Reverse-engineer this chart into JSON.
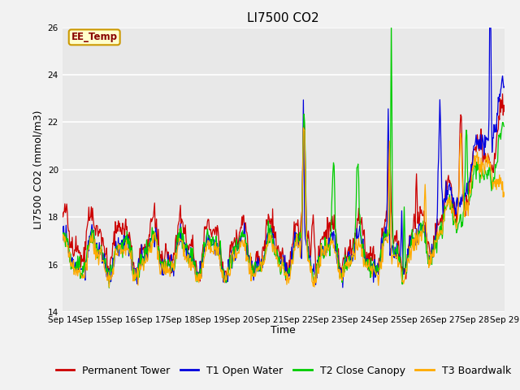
{
  "title": "LI7500 CO2",
  "ylabel": "LI7500 CO2 (mmol/m3)",
  "xlabel": "Time",
  "annotation": "EE_Temp",
  "ylim": [
    14,
    26
  ],
  "yticks": [
    14,
    16,
    18,
    20,
    22,
    24,
    26
  ],
  "xtick_labels": [
    "Sep 14",
    "Sep 15",
    "Sep 16",
    "Sep 17",
    "Sep 18",
    "Sep 19",
    "Sep 20",
    "Sep 21",
    "Sep 22",
    "Sep 23",
    "Sep 24",
    "Sep 25",
    "Sep 26",
    "Sep 27",
    "Sep 28",
    "Sep 29"
  ],
  "legend_entries": [
    "Permanent Tower",
    "T1 Open Water",
    "T2 Close Canopy",
    "T3 Boardwalk"
  ],
  "line_colors": [
    "#cc0000",
    "#0000dd",
    "#00cc00",
    "#ffaa00"
  ],
  "fig_bg_color": "#f2f2f2",
  "plot_bg_color": "#e8e8e8",
  "grid_color": "#ffffff",
  "annotation_bg": "#ffffcc",
  "annotation_border": "#cc9900",
  "annotation_text_color": "#880000",
  "title_fontsize": 11,
  "axis_label_fontsize": 9,
  "tick_fontsize": 7.5,
  "legend_fontsize": 9,
  "n_points": 720,
  "seed": 42
}
